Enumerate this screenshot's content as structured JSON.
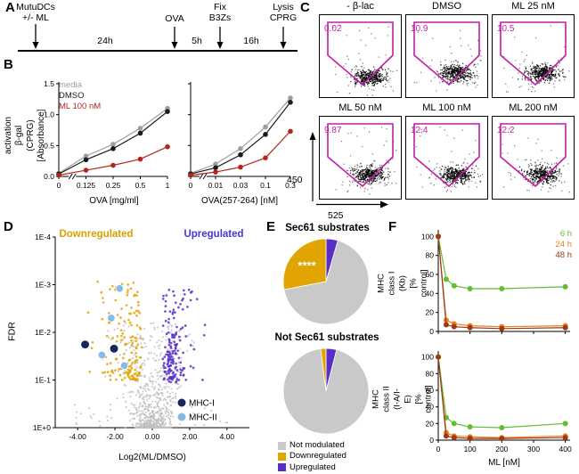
{
  "figure": {
    "background": "#ffffff"
  },
  "panels": {
    "A": {
      "label": "A",
      "events": [
        {
          "text": "MutuDCs\n+/- ML"
        },
        {
          "text": "OVA"
        },
        {
          "text": "Fix\nB3Zs"
        },
        {
          "text": "Lysis\nCPRG"
        }
      ],
      "durations": [
        "24h",
        "5h",
        "16h"
      ]
    },
    "B": {
      "label": "B",
      "ylabel": "T cell activation\nβ-gal (CPRG) [Absorbance]",
      "legend": [
        {
          "label": "media",
          "color": "#9E9E9E"
        },
        {
          "label": "DMSO",
          "color": "#1A1A1A"
        },
        {
          "label": "ML 100 nM",
          "color": "#B3261E"
        }
      ]
    },
    "C": {
      "label": "C"
    },
    "D": {
      "label": "D"
    },
    "E": {
      "label": "E",
      "legend": [
        {
          "label": "Not modulated",
          "color": "#C9C9C9"
        },
        {
          "label": "Downregulated",
          "color": "#E2A400"
        },
        {
          "label": "Upregulated",
          "color": "#5A2FC8"
        }
      ]
    },
    "F": {
      "label": "F",
      "ylabel_top": "MHC class I (Kb)\n[% control]",
      "ylabel_bottom": "MHC class II (I-A/I-E)\n[% control]",
      "legend": [
        {
          "label": "6 h",
          "color": "#5FBF2F"
        },
        {
          "label": "24 h",
          "color": "#ED7D1F"
        },
        {
          "label": "48 h",
          "color": "#9C3A12"
        }
      ]
    }
  },
  "chart_data": [
    {
      "id": "chart-b-left",
      "type": "line",
      "panel": "B",
      "categories": [
        "0",
        "0.125",
        "0.25",
        "0.5",
        "1"
      ],
      "xlabel": "OVA [mg/ml]",
      "ylabel": "T cell activation β-gal (CPRG) [Absorbance]",
      "ylim": [
        0,
        1.5
      ],
      "yticks": [
        0,
        0.5,
        1,
        1.5
      ],
      "ytick_labels": [
        "0.0",
        "0.5",
        "1.0",
        "1.5"
      ],
      "axis_break": true,
      "series": [
        {
          "name": "media",
          "color": "#9E9E9E",
          "values": [
            0.05,
            0.33,
            0.52,
            0.78,
            1.1
          ]
        },
        {
          "name": "DMSO",
          "color": "#1A1A1A",
          "values": [
            0.04,
            0.27,
            0.45,
            0.7,
            1.05
          ]
        },
        {
          "name": "ML 100 nM",
          "color": "#B3261E",
          "values": [
            0.02,
            0.1,
            0.18,
            0.28,
            0.48
          ]
        }
      ]
    },
    {
      "id": "chart-b-right",
      "type": "line",
      "panel": "B",
      "categories": [
        "0",
        "0.01",
        "0.03",
        "0.1",
        "0.3"
      ],
      "xlabel": "OVA(257-264) [nM]",
      "ylim": [
        0,
        1.5
      ],
      "yticks": [
        0,
        0.5,
        1,
        1.5
      ],
      "ytick_labels": [
        "0.0",
        "0.5",
        "1.0",
        "1.5"
      ],
      "axis_break": true,
      "series": [
        {
          "name": "media",
          "color": "#9E9E9E",
          "values": [
            0.05,
            0.2,
            0.45,
            0.8,
            1.27
          ]
        },
        {
          "name": "DMSO",
          "color": "#1A1A1A",
          "values": [
            0.04,
            0.14,
            0.35,
            0.68,
            1.2
          ]
        },
        {
          "name": "ML 100 nM",
          "color": "#B3261E",
          "values": [
            0.02,
            0.07,
            0.15,
            0.3,
            0.73
          ]
        }
      ]
    },
    {
      "id": "chart-volcano",
      "type": "scatter",
      "subtype": "volcano",
      "panel": "D",
      "xlabel": "Log2(ML/DMSO)",
      "ylabel": "FDR",
      "xlim": [
        -5.2,
        5.2
      ],
      "xticks": [
        -4,
        -2,
        0,
        2,
        4
      ],
      "xtick_labels": [
        "-4.00",
        "-2.00",
        "0.00",
        "2.00",
        "4.00"
      ],
      "yticks_log": [
        -4,
        -3,
        -2,
        -1,
        0
      ],
      "ytick_labels": [
        "1E-4",
        "1E-3",
        "1E-2",
        "1E-1",
        "1E+0"
      ],
      "annotations": [
        {
          "text": "Downregulated",
          "color": "#D99E00"
        },
        {
          "text": "Upregulated",
          "color": "#4534D6"
        }
      ],
      "groups": [
        {
          "name": "Not modulated",
          "color": "#BFBFBF",
          "count": 780
        },
        {
          "name": "Downregulated",
          "color": "#E2A400",
          "count": 150
        },
        {
          "name": "Upregulated",
          "color": "#5A2FC8",
          "count": 165
        }
      ],
      "highlight": [
        {
          "name": "MHC-I",
          "color": "#16275F",
          "points": [
            [
              -3.6,
              0.018
            ],
            [
              -2.05,
              0.022
            ]
          ]
        },
        {
          "name": "MHC-II",
          "color": "#85BBE8",
          "points": [
            [
              -1.75,
              0.0012
            ],
            [
              -2.2,
              0.005
            ],
            [
              -2.7,
              0.03
            ],
            [
              -1.5,
              0.05
            ]
          ]
        }
      ]
    },
    {
      "id": "pie-sec61",
      "type": "pie",
      "panel": "E",
      "title": "Sec61 substrates",
      "slices": [
        {
          "label": "Upregulated",
          "value": 4.5,
          "color": "#5A2FC8"
        },
        {
          "label": "Not modulated",
          "value": 67.5,
          "color": "#C9C9C9"
        },
        {
          "label": "Downregulated",
          "value": 28,
          "color": "#E2A400",
          "annotation": "****"
        }
      ]
    },
    {
      "id": "pie-notsec61",
      "type": "pie",
      "panel": "E",
      "title": "Not Sec61 substrates",
      "slices": [
        {
          "label": "Upregulated",
          "value": 4,
          "color": "#5A2FC8"
        },
        {
          "label": "Not modulated",
          "value": 94,
          "color": "#C9C9C9"
        },
        {
          "label": "Downregulated",
          "value": 2,
          "color": "#E2A400"
        }
      ]
    },
    {
      "id": "chart-f-top",
      "type": "line",
      "panel": "F",
      "x": [
        0,
        25,
        50,
        100,
        200,
        400
      ],
      "xlim": [
        0,
        415
      ],
      "xticks": [
        0,
        100,
        200,
        300,
        400
      ],
      "xtick_labels": [
        "0",
        "100",
        "200",
        "300",
        "400"
      ],
      "show_xtick_labels": false,
      "ylabel": "MHC class I (Kb) [% control]",
      "ylim": [
        0,
        105
      ],
      "yticks": [
        0,
        20,
        40,
        60,
        80,
        100
      ],
      "ytick_labels": [
        "0",
        "20",
        "40",
        "60",
        "80",
        "100"
      ],
      "series": [
        {
          "name": "6 h",
          "color": "#5FBF2F",
          "values": [
            100,
            55,
            48,
            45,
            45,
            47
          ]
        },
        {
          "name": "24 h",
          "color": "#ED7D1F",
          "values": [
            100,
            12,
            8,
            6,
            5,
            6
          ]
        },
        {
          "name": "48 h",
          "color": "#9C3A12",
          "values": [
            100,
            7,
            5,
            4,
            3,
            4
          ]
        }
      ]
    },
    {
      "id": "chart-f-bottom",
      "type": "line",
      "panel": "F",
      "x": [
        0,
        25,
        50,
        100,
        200,
        400
      ],
      "xlim": [
        0,
        415
      ],
      "xticks": [
        0,
        100,
        200,
        300,
        400
      ],
      "xtick_labels": [
        "0",
        "100",
        "200",
        "300",
        "400"
      ],
      "xlabel": "ML [nM]",
      "ylabel": "MHC class II (I-A/I-E) [% control]",
      "ylim": [
        0,
        105
      ],
      "yticks": [
        0,
        20,
        40,
        60,
        80,
        100
      ],
      "ytick_labels": [
        "0",
        "20",
        "40",
        "60",
        "80",
        "100"
      ],
      "series": [
        {
          "name": "6 h",
          "color": "#5FBF2F",
          "values": [
            100,
            27,
            20,
            16,
            15,
            20
          ]
        },
        {
          "name": "24 h",
          "color": "#ED7D1F",
          "values": [
            100,
            9,
            5,
            4,
            3,
            5
          ]
        },
        {
          "name": "48 h",
          "color": "#9C3A12",
          "values": [
            100,
            5,
            3,
            2,
            2,
            3
          ]
        }
      ]
    },
    {
      "id": "flow",
      "type": "scatter",
      "subtype": "flow_cytometry",
      "panel": "C",
      "x_axis_label": "525",
      "y_axis_label": "450",
      "gate_color": "#C21DA8",
      "plots": [
        {
          "title": "- β-lac",
          "gate_pct": "0.02"
        },
        {
          "title": "DMSO",
          "gate_pct": "10.9"
        },
        {
          "title": "ML 25 nM",
          "gate_pct": "10.5"
        },
        {
          "title": "ML 50 nM",
          "gate_pct": "9.87"
        },
        {
          "title": "ML 100 nM",
          "gate_pct": "12.4"
        },
        {
          "title": "ML 200 nM",
          "gate_pct": "12.2"
        }
      ]
    }
  ]
}
